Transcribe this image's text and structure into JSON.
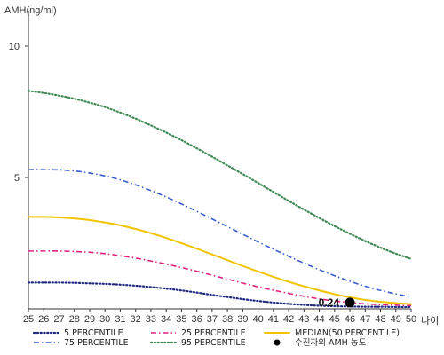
{
  "chart_data": {
    "type": "line",
    "ylabel": "AMH(ng/ml)",
    "xlabel": "나이",
    "x": [
      25,
      26,
      27,
      28,
      29,
      30,
      31,
      32,
      33,
      34,
      35,
      36,
      37,
      38,
      39,
      40,
      41,
      42,
      43,
      44,
      45,
      46,
      47,
      48,
      49,
      50
    ],
    "xlim": [
      25,
      50
    ],
    "ylim": [
      0,
      11
    ],
    "yticks": [
      5,
      10
    ],
    "grid": false,
    "legend_position": "bottom",
    "series": [
      {
        "name": "5 PERCENTILE",
        "color": "#1f2a80",
        "dash": "dotted",
        "values": [
          1.0,
          1.0,
          1.0,
          0.99,
          0.97,
          0.95,
          0.92,
          0.88,
          0.83,
          0.77,
          0.7,
          0.62,
          0.53,
          0.45,
          0.37,
          0.3,
          0.24,
          0.19,
          0.15,
          0.12,
          0.1,
          0.09,
          0.08,
          0.08,
          0.07,
          0.07
        ]
      },
      {
        "name": "25 PERCENTILE",
        "color": "#e0207f",
        "dash": "dashdot",
        "values": [
          2.2,
          2.2,
          2.2,
          2.18,
          2.15,
          2.1,
          2.02,
          1.93,
          1.82,
          1.7,
          1.57,
          1.43,
          1.28,
          1.13,
          0.98,
          0.84,
          0.71,
          0.59,
          0.48,
          0.38,
          0.3,
          0.24,
          0.19,
          0.16,
          0.14,
          0.12
        ]
      },
      {
        "name": "MEDIAN(50 PERCENTILE)",
        "color": "#f2c400",
        "dash": "solid",
        "values": [
          3.5,
          3.5,
          3.48,
          3.44,
          3.38,
          3.29,
          3.18,
          3.04,
          2.88,
          2.7,
          2.5,
          2.29,
          2.07,
          1.85,
          1.63,
          1.42,
          1.22,
          1.03,
          0.86,
          0.7,
          0.56,
          0.44,
          0.34,
          0.27,
          0.22,
          0.18
        ]
      },
      {
        "name": "75 PERCENTILE",
        "color": "#3a5fc8",
        "dash": "dashdot",
        "values": [
          5.3,
          5.3,
          5.29,
          5.25,
          5.17,
          5.06,
          4.91,
          4.72,
          4.5,
          4.26,
          3.99,
          3.71,
          3.42,
          3.13,
          2.84,
          2.55,
          2.27,
          2.0,
          1.74,
          1.49,
          1.26,
          1.05,
          0.86,
          0.7,
          0.57,
          0.45
        ]
      },
      {
        "name": "95 PERCENTILE",
        "color": "#3f8a55",
        "dash": "dotted",
        "values": [
          8.3,
          8.22,
          8.12,
          8.0,
          7.85,
          7.68,
          7.47,
          7.24,
          6.98,
          6.71,
          6.42,
          6.11,
          5.79,
          5.46,
          5.13,
          4.79,
          4.45,
          4.11,
          3.78,
          3.46,
          3.15,
          2.86,
          2.58,
          2.33,
          2.1,
          1.9
        ]
      }
    ],
    "highlight": {
      "name": "수진자의 AMH 농도",
      "x": 46,
      "y": 0.24,
      "label": "0.24",
      "color": "#000000"
    }
  }
}
